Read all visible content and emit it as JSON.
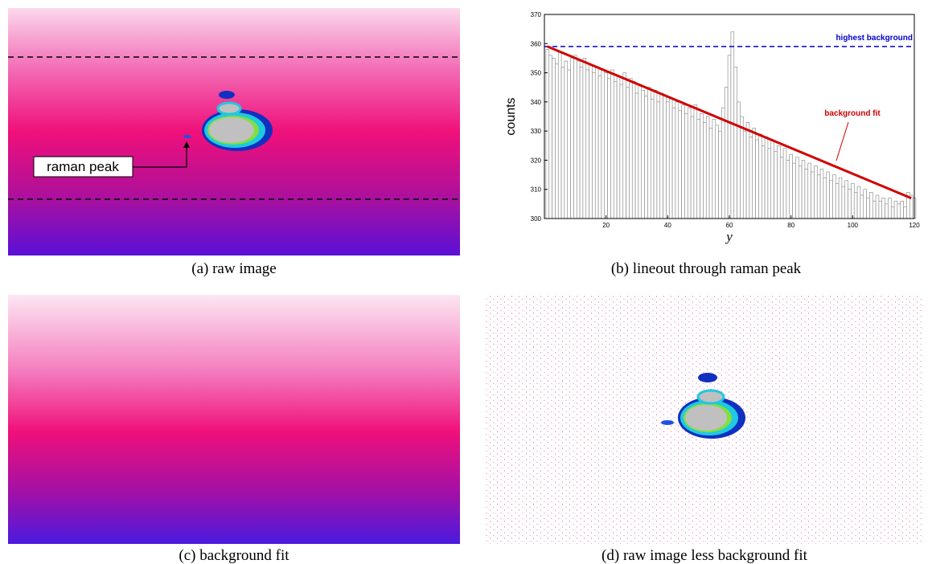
{
  "panels": [
    {
      "caption": "(a) raw image",
      "annotation": "raman peak"
    },
    {
      "caption": "(b) lineout through raman peak"
    },
    {
      "caption": "(c) background fit"
    },
    {
      "caption": "(d) raw image less background fit"
    }
  ],
  "chart_data": {
    "type": "bar",
    "xlabel": "y",
    "ylabel": "counts",
    "x": [
      1,
      2,
      3,
      4,
      5,
      6,
      7,
      8,
      9,
      10,
      11,
      12,
      13,
      14,
      15,
      16,
      17,
      18,
      19,
      20,
      21,
      22,
      23,
      24,
      25,
      26,
      27,
      28,
      29,
      30,
      31,
      32,
      33,
      34,
      35,
      36,
      37,
      38,
      39,
      40,
      41,
      42,
      43,
      44,
      45,
      46,
      47,
      48,
      49,
      50,
      51,
      52,
      53,
      54,
      55,
      56,
      57,
      58,
      59,
      60,
      61,
      62,
      63,
      64,
      65,
      66,
      67,
      68,
      69,
      70,
      71,
      72,
      73,
      74,
      75,
      76,
      77,
      78,
      79,
      80,
      81,
      82,
      83,
      84,
      85,
      86,
      87,
      88,
      89,
      90,
      91,
      92,
      93,
      94,
      95,
      96,
      97,
      98,
      99,
      100,
      101,
      102,
      103,
      104,
      105,
      106,
      107,
      108,
      109,
      110,
      111,
      112,
      113,
      114,
      115,
      116,
      117,
      118,
      119,
      120
    ],
    "values": [
      358,
      356,
      355,
      353,
      357,
      352,
      354,
      351,
      355,
      356,
      354,
      352,
      355,
      351,
      353,
      350,
      352,
      349,
      351,
      350,
      348,
      351,
      347,
      349,
      346,
      350,
      345,
      348,
      347,
      343,
      346,
      344,
      342,
      345,
      341,
      344,
      340,
      343,
      342,
      340,
      341,
      338,
      340,
      337,
      339,
      336,
      338,
      335,
      339,
      334,
      336,
      333,
      335,
      331,
      334,
      332,
      330,
      338,
      345,
      356,
      364,
      352,
      340,
      335,
      330,
      333,
      328,
      331,
      327,
      329,
      325,
      328,
      324,
      327,
      323,
      325,
      321,
      324,
      320,
      322,
      319,
      321,
      318,
      320,
      317,
      319,
      316,
      318,
      315,
      317,
      314,
      316,
      313,
      315,
      312,
      314,
      311,
      313,
      310,
      312,
      309,
      311,
      308,
      310,
      307,
      309,
      306,
      308,
      306,
      307,
      305,
      307,
      304,
      306,
      305,
      306,
      304,
      309,
      308,
      307
    ],
    "color": "#808080",
    "fit": {
      "name": "background fit",
      "color": "#d00000",
      "x": [
        1,
        119
      ],
      "values": [
        359,
        307
      ]
    },
    "threshold": {
      "name": "highest background",
      "color": "#0000cc",
      "value": 359
    },
    "xlim": [
      0,
      120
    ],
    "ylim": [
      300,
      370
    ],
    "xticks": [
      20,
      40,
      60,
      80,
      100,
      120
    ],
    "yticks": [
      300,
      310,
      320,
      330,
      340,
      350,
      360,
      370
    ]
  }
}
